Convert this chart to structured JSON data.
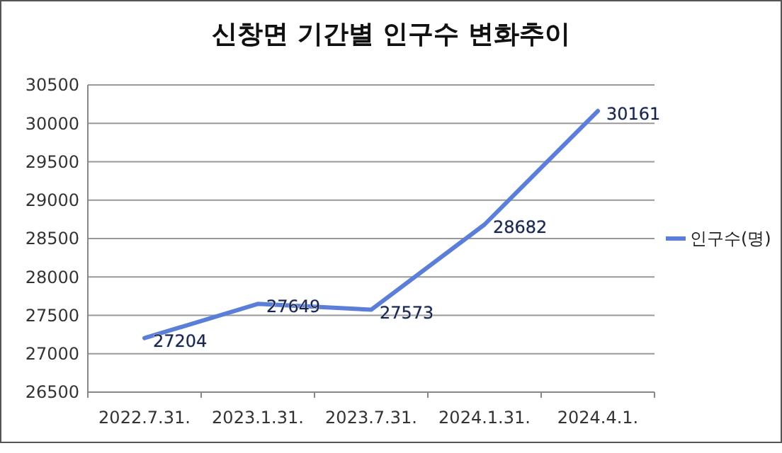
{
  "chart_data": {
    "type": "line",
    "title": "신창면 기간별 인구수 변화추이",
    "categories": [
      "2022.7.31.",
      "2023.1.31.",
      "2023.7.31.",
      "2024.1.31.",
      "2024.4.1."
    ],
    "series": [
      {
        "name": "인구수(명)",
        "color": "#5b7fd9",
        "values": [
          27204,
          27649,
          27573,
          28682,
          30161
        ]
      }
    ],
    "ylim": [
      26500,
      30500
    ],
    "yticks": [
      26500,
      27000,
      27500,
      28000,
      28500,
      29000,
      29500,
      30000,
      30500
    ],
    "grid": "y",
    "legend": "right",
    "data_labels": true,
    "marker": "none",
    "line_style": "solid"
  }
}
